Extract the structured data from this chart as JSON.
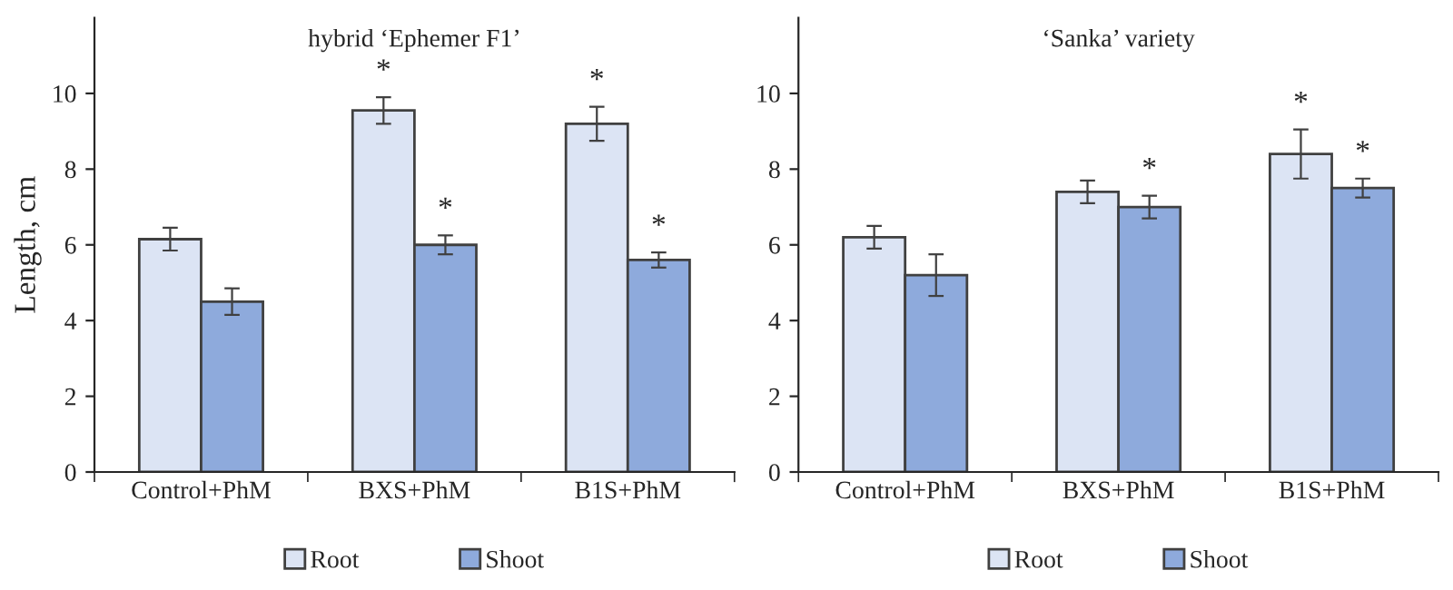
{
  "chart_data": [
    {
      "type": "bar",
      "title": "hybrid ‘Ephemer F1’",
      "ylabel": "Length, cm",
      "categories": [
        "Control+PhM",
        "BXS+PhM",
        "B1S+PhM"
      ],
      "series": [
        {
          "name": "Root",
          "color": "#dce4f4",
          "values": [
            6.15,
            9.55,
            9.2
          ],
          "errors": [
            0.3,
            0.35,
            0.45
          ]
        },
        {
          "name": "Shoot",
          "color": "#8eaadc",
          "values": [
            4.5,
            6.0,
            5.6
          ],
          "errors": [
            0.35,
            0.25,
            0.2
          ]
        }
      ],
      "ylim": [
        0,
        12
      ],
      "yticks": [
        0,
        2,
        4,
        6,
        8,
        10
      ],
      "legend": "bottom",
      "annotations": [
        {
          "text": "*",
          "x": "BXS+PhM",
          "y": 9.55
        },
        {
          "text": "*",
          "x": "B1S+PhM",
          "y": 9.2
        },
        {
          "text": "*",
          "x": "BXS+PhM",
          "y": 6.0
        },
        {
          "text": "*",
          "x": "B1S+PhM",
          "y": 5.6
        }
      ]
    },
    {
      "type": "bar",
      "title": "‘Sanka’ variety",
      "categories": [
        "Control+PhM",
        "BXS+PhM",
        "B1S+PhM"
      ],
      "series": [
        {
          "name": "Root",
          "color": "#dce4f4",
          "values": [
            6.2,
            7.4,
            8.4
          ],
          "errors": [
            0.3,
            0.3,
            0.65
          ]
        },
        {
          "name": "Shoot",
          "color": "#8eaadc",
          "values": [
            5.2,
            7.0,
            7.5
          ],
          "errors": [
            0.55,
            0.3,
            0.25
          ]
        }
      ],
      "ylim": [
        0,
        12
      ],
      "yticks": [
        0,
        2,
        4,
        6,
        8,
        10
      ],
      "legend": "bottom",
      "annotations": [
        {
          "text": "*",
          "x": "BXS+PhM",
          "y": 7.0
        },
        {
          "text": "*",
          "x": "B1S+PhM",
          "y": 8.4
        },
        {
          "text": "*",
          "x": "B1S+PhM",
          "y": 7.5
        }
      ]
    }
  ]
}
